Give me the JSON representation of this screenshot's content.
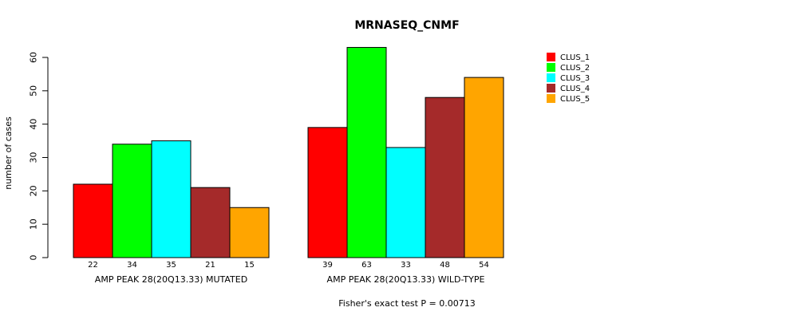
{
  "chart_data": {
    "type": "bar",
    "title": "MRNASEQ_CNMF",
    "ylabel": "number of cases",
    "xlabel": "",
    "subtitle": "Fisher's exact test P = 0.00713",
    "ylim": [
      0,
      60
    ],
    "yticks": [
      0,
      10,
      20,
      30,
      40,
      50,
      60
    ],
    "groups": [
      "AMP PEAK 28(20Q13.33) MUTATED",
      "AMP PEAK 28(20Q13.33) WILD-TYPE"
    ],
    "series": [
      {
        "name": "CLUS_1",
        "color": "#ff0000",
        "values": [
          22,
          39
        ]
      },
      {
        "name": "CLUS_2",
        "color": "#00ff00",
        "values": [
          34,
          63
        ]
      },
      {
        "name": "CLUS_3",
        "color": "#00ffff",
        "values": [
          35,
          33
        ]
      },
      {
        "name": "CLUS_4",
        "color": "#a52a2a",
        "values": [
          21,
          48
        ]
      },
      {
        "name": "CLUS_5",
        "color": "#ffa500",
        "values": [
          15,
          54
        ]
      }
    ],
    "legend_position": "top-right",
    "grid": false
  }
}
